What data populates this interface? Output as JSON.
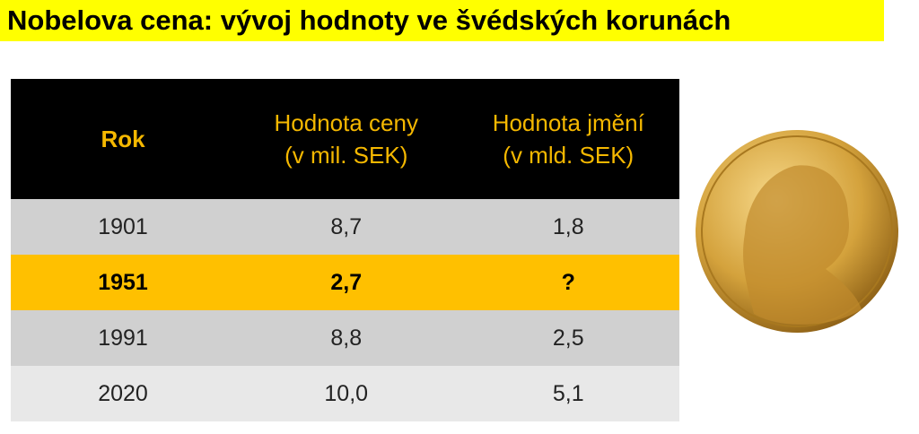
{
  "title": "Nobelova cena: vývoj hodnoty ve švédských korunách",
  "table": {
    "header": [
      [
        "Rok"
      ],
      [
        "Hodnota ceny",
        "(v mil. SEK)"
      ],
      [
        "Hodnota jmění",
        "(v mld. SEK)"
      ]
    ],
    "rows": [
      [
        "1901",
        "8,7",
        "1,8"
      ],
      [
        "1951",
        "2,7",
        "?"
      ],
      [
        "1991",
        "8,8",
        "2,5"
      ],
      [
        "2020",
        "10,0",
        "5,1"
      ]
    ]
  }
}
